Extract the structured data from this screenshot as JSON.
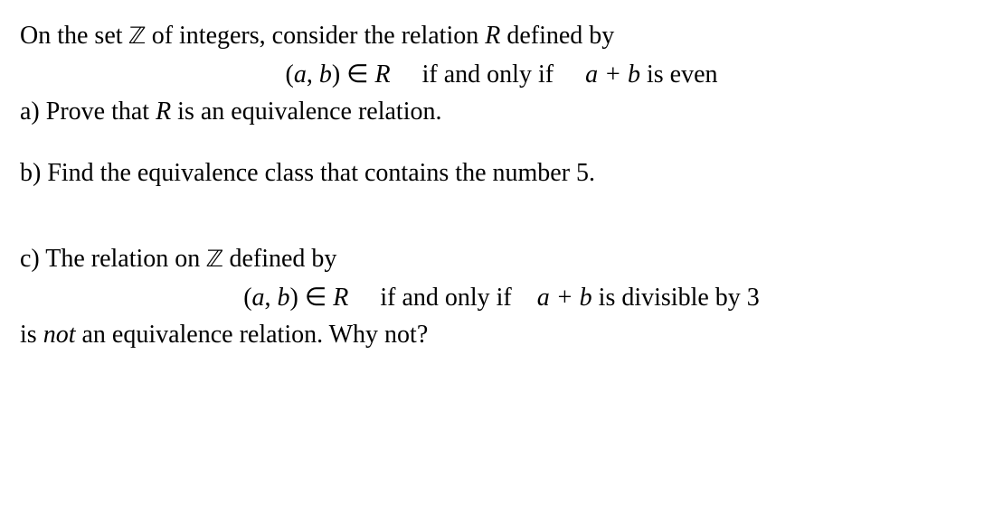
{
  "p1_prefix": "On the set ",
  "p1_Z": "ℤ",
  "p1_mid1": " of integers, consider the relation ",
  "p1_R": "R",
  "p1_suffix": " defined by",
  "rel_lparen": "(",
  "rel_a": "a",
  "rel_comma": ", ",
  "rel_b": "b",
  "rel_rparen": ")",
  "rel_in": " ∈ ",
  "rel_R": "R",
  "rel_gap1": "     ",
  "rel_iff": "if and only if",
  "rel_gap2": "     ",
  "rel_aplusb": "a + b ",
  "rel_even": " is even",
  "a_prefix": "a) Prove that ",
  "a_R": "R",
  "a_suffix": " is an equivalence relation.",
  "b_text": "b) Find the equivalence class that contains the number 5.",
  "c_prefix": "c) The relation on ",
  "c_Z": "ℤ",
  "c_suffix": " defined by",
  "rel2_gap2": "    ",
  "rel2_tail": " is divisible by 3",
  "d_prefix": "is ",
  "d_not": "not",
  "d_suffix": " an equivalence relation. Why not?"
}
